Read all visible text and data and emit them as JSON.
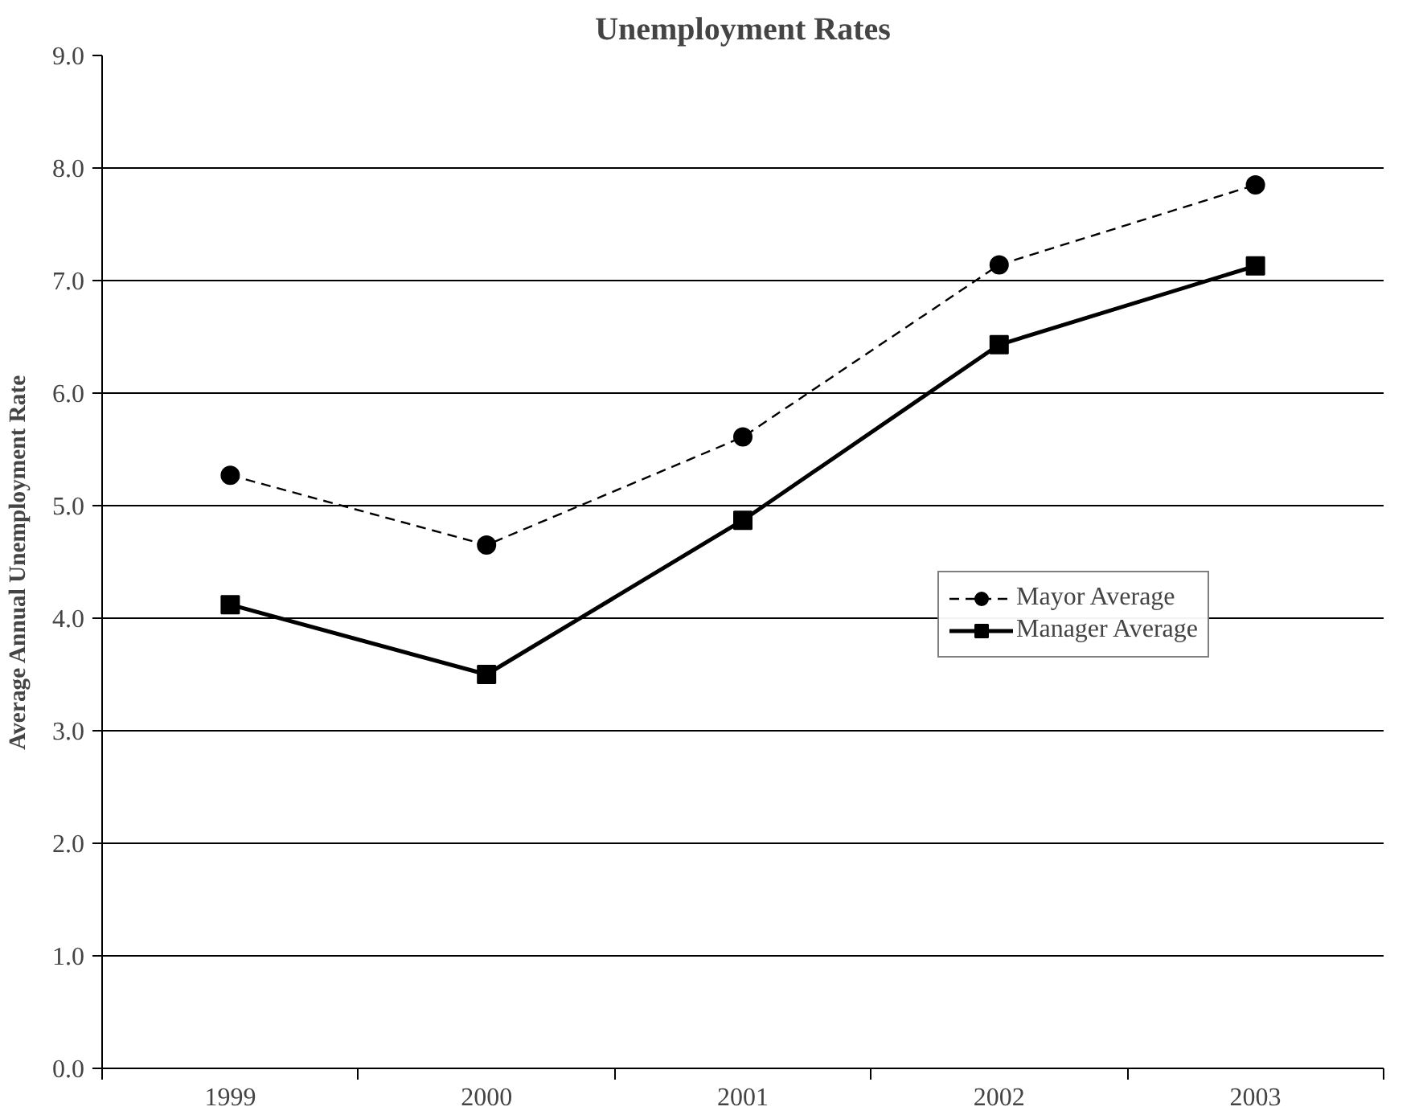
{
  "chart_data": {
    "type": "line",
    "title": "Unemployment Rates",
    "ylabel": "Average Annual Unemployment Rate",
    "categories": [
      "1999",
      "2000",
      "2001",
      "2002",
      "2003"
    ],
    "series": [
      {
        "name": "Mayor Average",
        "color": "#000000",
        "values": [
          5.27,
          4.65,
          5.61,
          7.14,
          7.85
        ],
        "marker": "circle",
        "line_style": "dashed"
      },
      {
        "name": "Manager Average",
        "color": "#000000",
        "values": [
          4.12,
          3.5,
          4.87,
          6.43,
          7.13
        ],
        "marker": "square",
        "line_style": "solid"
      }
    ],
    "ylim": [
      0,
      9
    ],
    "yticks": [
      {
        "value": 0,
        "label": "0.0"
      },
      {
        "value": 1,
        "label": "1.0"
      },
      {
        "value": 2,
        "label": "2.0"
      },
      {
        "value": 3,
        "label": "3.0"
      },
      {
        "value": 4,
        "label": "4.0"
      },
      {
        "value": 5,
        "label": "5.0"
      },
      {
        "value": 6,
        "label": "6.0"
      },
      {
        "value": 7,
        "label": "7.0"
      },
      {
        "value": 8,
        "label": "8.0"
      },
      {
        "value": 9,
        "label": "9.0"
      }
    ],
    "grid": "y",
    "legend": "right"
  }
}
